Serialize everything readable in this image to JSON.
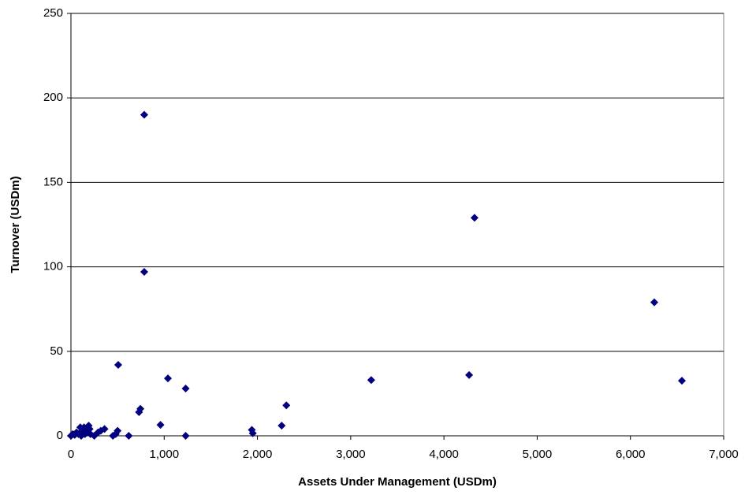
{
  "chart_data": {
    "type": "scatter",
    "x_label": "Assets Under Management (USDm)",
    "y_label": "Turnover (USDm)",
    "color": "#000080",
    "grid": true,
    "xlim": [
      0,
      7000
    ],
    "xticks": [
      0,
      {
        "value": 1000,
        "label": "1,000"
      },
      {
        "value": 2000,
        "label": "2,000"
      },
      {
        "value": 3000,
        "label": "3,000"
      },
      {
        "value": 4000,
        "label": "4,000"
      },
      {
        "value": 5000,
        "label": "5,000"
      },
      {
        "value": 6000,
        "label": "6,000"
      },
      {
        "value": 7000,
        "label": "7,000"
      }
    ],
    "ylim": [
      0,
      250
    ],
    "yticks": [
      0,
      50,
      100,
      150,
      200,
      250
    ],
    "x": [
      786,
      786,
      4328,
      6256,
      6552,
      4270,
      3220,
      507,
      1040,
      1230,
      745,
      730,
      960,
      1230,
      620,
      1940,
      1950,
      2260,
      2310,
      0,
      20,
      40,
      60,
      80,
      100,
      110,
      120,
      140,
      150,
      170,
      190,
      200,
      210,
      250,
      290,
      320,
      360,
      450,
      480,
      500
    ],
    "values": [
      190,
      97,
      129,
      79,
      32.6,
      36,
      33,
      42,
      34,
      28,
      16,
      14,
      6.5,
      0,
      0,
      3.5,
      1.5,
      6,
      18,
      0,
      1,
      0.5,
      2,
      1,
      5,
      0,
      3,
      5,
      1,
      2,
      6,
      4,
      1,
      0,
      2,
      3,
      4,
      0,
      1,
      3
    ]
  }
}
